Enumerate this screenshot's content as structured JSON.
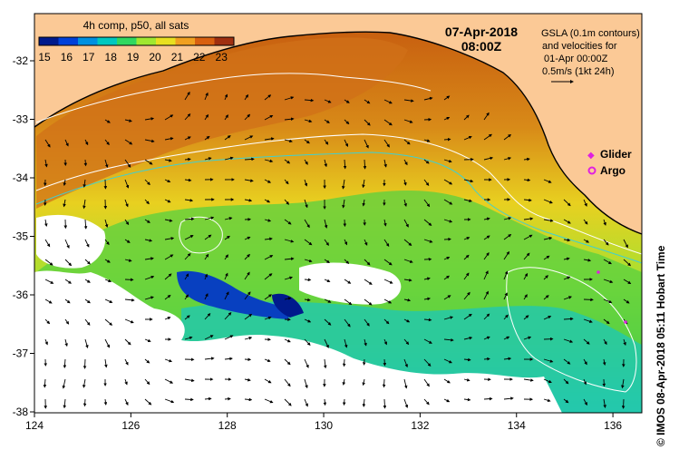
{
  "colorbar": {
    "title": "4h comp, p50, all sats",
    "tick_labels": [
      "15",
      "16",
      "17",
      "18",
      "19",
      "20",
      "21",
      "22",
      "23"
    ],
    "colors": [
      "#001a8c",
      "#0040d9",
      "#0090e0",
      "#00c8c0",
      "#30d860",
      "#a0e830",
      "#e8e020",
      "#f0a020",
      "#d86010",
      "#a03010"
    ]
  },
  "timestamp": {
    "date": "07-Apr-2018",
    "time": "08:00Z"
  },
  "gsla_note": {
    "line1": "GSLA (0.1m contours)",
    "line2": "and velocities for",
    "line3": "01-Apr 00:00Z",
    "line4": "0.5m/s (1kt 24h)"
  },
  "legend": {
    "glider": "Glider",
    "argo": "Argo",
    "glider_color": "#e020e0",
    "argo_color": "#e020e0"
  },
  "axes": {
    "x_ticks": [
      "124",
      "126",
      "128",
      "130",
      "132",
      "134",
      "136"
    ],
    "y_ticks": [
      "-32",
      "-33",
      "-34",
      "-35",
      "-36",
      "-37",
      "-38"
    ]
  },
  "credit": "© IMOS 08-Apr-2018 05:11 Hobart Time",
  "colors": {
    "land": "#fbc996",
    "no_data": "#ffffff",
    "contour_positive": "#ffffff",
    "contour_zero": "#40d0d0"
  }
}
